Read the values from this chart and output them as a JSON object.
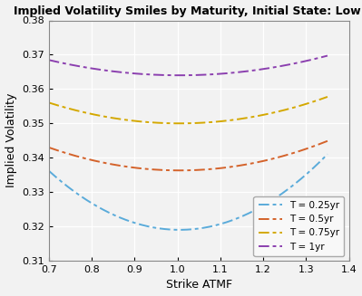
{
  "title": "Implied Volatility Smiles by Maturity, Initial State: Low vol",
  "xlabel": "Strike ATMF",
  "ylabel": "Implied Volatility",
  "xlim": [
    0.7,
    1.4
  ],
  "ylim": [
    0.31,
    0.38
  ],
  "xticks": [
    0.7,
    0.8,
    0.9,
    1.0,
    1.1,
    1.2,
    1.3,
    1.4
  ],
  "yticks": [
    0.31,
    0.32,
    0.33,
    0.34,
    0.35,
    0.36,
    0.37,
    0.38
  ],
  "smile_params": [
    {
      "label": "T = 0.25yr",
      "color": "#5AABDA",
      "linestyle": "-.",
      "a": 0.319,
      "b": 0.185,
      "c": 1.005
    },
    {
      "label": "T = 0.5yr",
      "color": "#D4622A",
      "linestyle": "-.",
      "a": 0.3363,
      "b": 0.072,
      "c": 1.005
    },
    {
      "label": "T = 0.75yr",
      "color": "#D4A800",
      "linestyle": "-.",
      "a": 0.35,
      "b": 0.065,
      "c": 1.005
    },
    {
      "label": "T = 1yr",
      "color": "#8B3FAF",
      "linestyle": "-.",
      "a": 0.364,
      "b": 0.048,
      "c": 1.005
    }
  ],
  "plot_bg_color": "#f2f2f2",
  "fig_bg_color": "#f2f2f2",
  "grid_color": "#ffffff",
  "legend_loc": "lower right"
}
